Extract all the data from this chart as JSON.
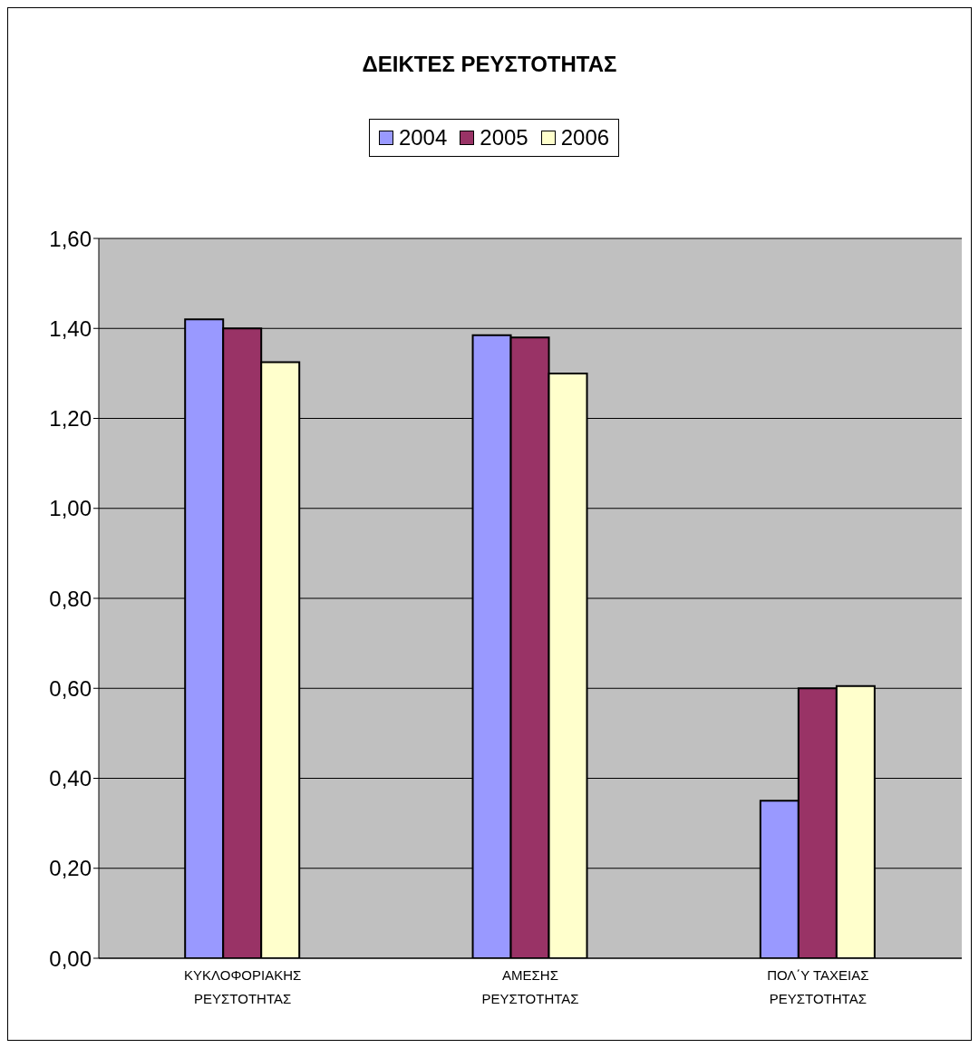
{
  "chart_data": {
    "type": "bar",
    "title": "ΔΕΙΚΤΕΣ ΡΕΥΣΤΟΤΗΤΑΣ",
    "categories": [
      "ΚΥΚΛΟΦΟΡΙΑΚΗΣ\nΡΕΥΣΤΟΤΗΤΑΣ",
      "ΑΜΕΣΗΣ\nΡΕΥΣΤΟΤΗΤΑΣ",
      "ΠΟΛ΄Υ ΤΑΧΕΙΑΣ\nΡΕΥΣΤΟΤΗΤΑΣ"
    ],
    "series": [
      {
        "name": "2004",
        "color": "#9999ff",
        "values": [
          1.42,
          1.385,
          0.35
        ]
      },
      {
        "name": "2005",
        "color": "#993366",
        "values": [
          1.4,
          1.38,
          0.6
        ]
      },
      {
        "name": "2006",
        "color": "#ffffcc",
        "values": [
          1.325,
          1.3,
          0.605
        ]
      }
    ],
    "ylim": [
      0,
      1.6
    ],
    "yticks": [
      {
        "value": 0,
        "label": "0,00"
      },
      {
        "value": 0.2,
        "label": "0,20"
      },
      {
        "value": 0.4,
        "label": "0,40"
      },
      {
        "value": 0.6,
        "label": "0,60"
      },
      {
        "value": 0.8,
        "label": "0,80"
      },
      {
        "value": 1.0,
        "label": "1,00"
      },
      {
        "value": 1.2,
        "label": "1,20"
      },
      {
        "value": 1.4,
        "label": "1,40"
      },
      {
        "value": 1.6,
        "label": "1,60"
      }
    ],
    "grid": "y",
    "legend": "top"
  }
}
